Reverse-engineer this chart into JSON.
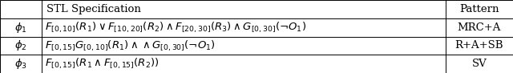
{
  "col_headers": [
    "",
    "STL Specification",
    "Pattern"
  ],
  "rows": [
    {
      "phi": "$\\phi_1$",
      "spec": "$F_{[0,10]}(R_1)\\vee F_{[10,20]}(R_2)\\wedge F_{[20,30]}(R_3)\\wedge G_{[0,30]}(\\neg O_1)$",
      "pattern": "MRC+A"
    },
    {
      "phi": "$\\phi_2$",
      "spec": "$F_{[0,15]}G_{[0,10]}(R_1)\\wedge\\wedge G_{[0,30]}(\\neg O_1)$",
      "pattern": "R+A+SB"
    },
    {
      "phi": "$\\phi_3$",
      "spec": "$F_{[0,15]}(R_1\\wedge F_{[0,15]}(R_2))$",
      "pattern": "SV"
    }
  ],
  "background_color": "#ffffff",
  "border_color": "#000000",
  "col_bounds": [
    0.0,
    0.082,
    0.868,
    1.0
  ],
  "header_fontsize": 9.5,
  "cell_fontsize": 9.5,
  "fig_width": 6.4,
  "fig_height": 0.91
}
